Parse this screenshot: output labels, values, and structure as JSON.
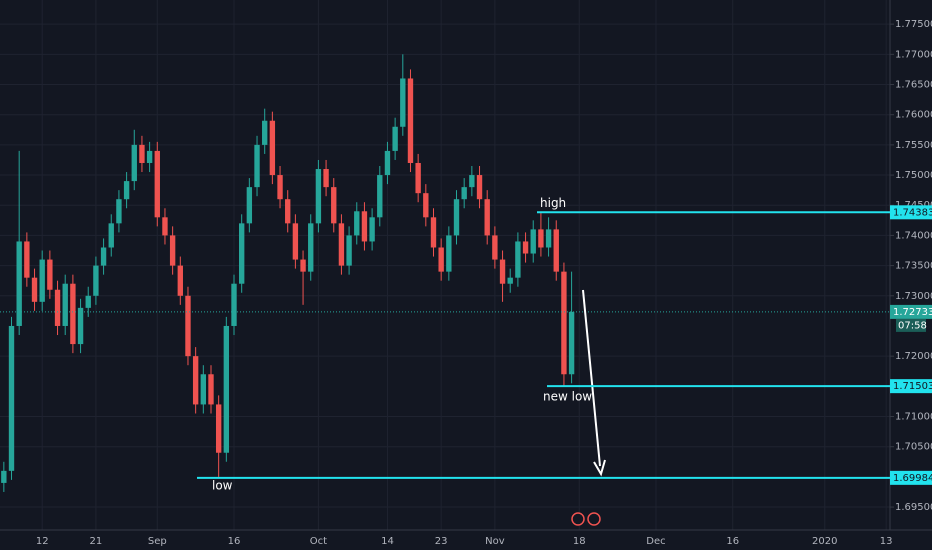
{
  "chart_data": {
    "type": "candlestick",
    "categories": [
      null,
      null,
      null,
      null,
      null,
      "12",
      null,
      null,
      null,
      null,
      null,
      null,
      "21",
      null,
      null,
      null,
      null,
      null,
      null,
      null,
      "Sep",
      null,
      null,
      null,
      null,
      null,
      null,
      null,
      null,
      null,
      "16",
      null,
      null,
      null,
      null,
      null,
      null,
      null,
      null,
      null,
      null,
      "Oct",
      null,
      null,
      null,
      null,
      null,
      null,
      null,
      null,
      "14",
      null,
      null,
      null,
      null,
      null,
      null,
      "23",
      null,
      null,
      null,
      null,
      null,
      null,
      "Nov",
      null,
      null,
      null,
      null,
      null,
      null,
      null,
      null,
      null,
      null,
      "18",
      null,
      null,
      null,
      null,
      null,
      null,
      null,
      null,
      null,
      "Dec",
      null,
      null,
      null,
      null,
      null,
      null,
      null,
      null,
      null,
      "16",
      null,
      null,
      null,
      null,
      null,
      null,
      null,
      null,
      null,
      null,
      null,
      "2020",
      null,
      null,
      null,
      null,
      null,
      null,
      null,
      "13"
    ],
    "open": [
      1.699,
      1.701,
      1.725,
      1.739,
      1.733,
      1.729,
      1.736,
      1.731,
      1.725,
      1.732,
      1.722,
      1.728,
      1.73,
      1.735,
      1.738,
      1.742,
      1.746,
      1.749,
      1.755,
      1.752,
      1.754,
      1.743,
      1.74,
      1.735,
      1.73,
      1.72,
      1.712,
      1.717,
      1.712,
      1.704,
      1.725,
      1.732,
      1.742,
      1.748,
      1.755,
      1.759,
      1.75,
      1.746,
      1.742,
      1.736,
      1.734,
      1.742,
      1.751,
      1.748,
      1.742,
      1.735,
      1.74,
      1.744,
      1.739,
      1.743,
      1.75,
      1.754,
      1.758,
      1.766,
      1.752,
      1.747,
      1.743,
      1.738,
      1.734,
      1.74,
      1.746,
      1.748,
      1.75,
      1.746,
      1.74,
      1.736,
      1.732,
      1.733,
      1.739,
      1.737,
      1.741,
      1.738,
      1.741,
      1.734,
      1.717,
      null,
      null,
      null,
      null,
      null,
      null,
      null,
      null,
      null,
      null,
      null,
      null,
      null,
      null,
      null,
      null,
      null,
      null,
      null,
      null,
      null,
      null,
      null,
      null,
      null,
      null,
      null,
      null,
      null,
      null,
      null,
      null,
      null,
      null,
      null,
      null,
      null,
      null,
      null,
      null,
      null
    ],
    "high": [
      1.7025,
      1.7265,
      1.754,
      1.7405,
      1.7345,
      1.7375,
      1.7375,
      1.7325,
      1.7335,
      1.7335,
      1.7295,
      1.7315,
      1.7365,
      1.7395,
      1.7435,
      1.7475,
      1.7505,
      1.7575,
      1.7565,
      1.7555,
      1.7555,
      1.7445,
      1.7415,
      1.7365,
      1.7315,
      1.7215,
      1.7185,
      1.7185,
      1.7135,
      1.7265,
      1.7335,
      1.7435,
      1.7495,
      1.7565,
      1.761,
      1.7605,
      1.7515,
      1.7475,
      1.7435,
      1.7375,
      1.7435,
      1.7525,
      1.7525,
      1.7495,
      1.7435,
      1.7415,
      1.7455,
      1.7455,
      1.7445,
      1.7515,
      1.7555,
      1.7595,
      1.77,
      1.7675,
      1.7535,
      1.7485,
      1.7445,
      1.7395,
      1.7415,
      1.7475,
      1.7495,
      1.7515,
      1.7515,
      1.7475,
      1.7415,
      1.7375,
      1.7345,
      1.7405,
      1.7405,
      1.7425,
      1.7438,
      1.743,
      1.7425,
      1.7355,
      1.734,
      null,
      null,
      null,
      null,
      null,
      null,
      null,
      null,
      null,
      null,
      null,
      null,
      null,
      null,
      null,
      null,
      null,
      null,
      null,
      null,
      null,
      null,
      null,
      null,
      null,
      null,
      null,
      null,
      null,
      null,
      null,
      null,
      null,
      null,
      null,
      null,
      null,
      null,
      null,
      null,
      null
    ],
    "low": [
      1.6975,
      1.6995,
      1.7235,
      1.7315,
      1.7275,
      1.7275,
      1.7295,
      1.7235,
      1.7235,
      1.7205,
      1.7205,
      1.7265,
      1.7285,
      1.7335,
      1.7365,
      1.7405,
      1.7445,
      1.7475,
      1.7505,
      1.7505,
      1.7415,
      1.7385,
      1.7335,
      1.7285,
      1.7185,
      1.7105,
      1.7105,
      1.7105,
      1.7,
      1.7025,
      1.7235,
      1.7305,
      1.7405,
      1.7465,
      1.7535,
      1.7485,
      1.7445,
      1.7405,
      1.7345,
      1.7285,
      1.7325,
      1.7405,
      1.7465,
      1.7405,
      1.7335,
      1.7335,
      1.7385,
      1.7375,
      1.7375,
      1.7415,
      1.7485,
      1.7525,
      1.7565,
      1.7505,
      1.7455,
      1.7415,
      1.7365,
      1.7325,
      1.7325,
      1.7385,
      1.7445,
      1.7465,
      1.7445,
      1.7385,
      1.7345,
      1.729,
      1.7305,
      1.7315,
      1.7355,
      1.7355,
      1.7365,
      1.7365,
      1.7325,
      1.715,
      1.7155,
      null,
      null,
      null,
      null,
      null,
      null,
      null,
      null,
      null,
      null,
      null,
      null,
      null,
      null,
      null,
      null,
      null,
      null,
      null,
      null,
      null,
      null,
      null,
      null,
      null,
      null,
      null,
      null,
      null,
      null,
      null,
      null,
      null,
      null,
      null,
      null,
      null,
      null,
      null,
      null,
      null
    ],
    "close": [
      1.701,
      1.725,
      1.739,
      1.733,
      1.729,
      1.736,
      1.731,
      1.725,
      1.732,
      1.722,
      1.728,
      1.73,
      1.735,
      1.738,
      1.742,
      1.746,
      1.749,
      1.755,
      1.752,
      1.754,
      1.743,
      1.74,
      1.735,
      1.73,
      1.72,
      1.712,
      1.717,
      1.712,
      1.704,
      1.725,
      1.732,
      1.742,
      1.748,
      1.755,
      1.759,
      1.75,
      1.746,
      1.742,
      1.736,
      1.734,
      1.742,
      1.751,
      1.748,
      1.742,
      1.735,
      1.74,
      1.744,
      1.739,
      1.743,
      1.75,
      1.754,
      1.758,
      1.766,
      1.752,
      1.747,
      1.743,
      1.738,
      1.734,
      1.74,
      1.746,
      1.748,
      1.75,
      1.746,
      1.74,
      1.736,
      1.732,
      1.733,
      1.739,
      1.737,
      1.741,
      1.738,
      1.741,
      1.734,
      1.717,
      1.72733,
      null,
      null,
      null,
      null,
      null,
      null,
      null,
      null,
      null,
      null,
      null,
      null,
      null,
      null,
      null,
      null,
      null,
      null,
      null,
      null,
      null,
      null,
      null,
      null,
      null,
      null,
      null,
      null,
      null,
      null,
      null,
      null,
      null,
      null,
      null,
      null,
      null,
      null,
      null,
      null,
      null
    ],
    "up_color": "#26a69a",
    "down_color": "#ef5350",
    "ylim": [
      1.6912,
      1.779
    ],
    "yticks": [
      {
        "value": 1.695,
        "label": "1.69500"
      },
      {
        "value": 1.705,
        "label": "1.70500"
      },
      {
        "value": 1.71,
        "label": "1.71000"
      },
      {
        "value": 1.72,
        "label": "1.72000"
      },
      {
        "value": 1.73,
        "label": "1.73000"
      },
      {
        "value": 1.735,
        "label": "1.73500"
      },
      {
        "value": 1.74,
        "label": "1.74000"
      },
      {
        "value": 1.745,
        "label": "1.74500"
      },
      {
        "value": 1.75,
        "label": "1.75000"
      },
      {
        "value": 1.755,
        "label": "1.75500"
      },
      {
        "value": 1.76,
        "label": "1.76000"
      },
      {
        "value": 1.765,
        "label": "1.76500"
      },
      {
        "value": 1.77,
        "label": "1.77000"
      },
      {
        "value": 1.775,
        "label": "1.77500"
      }
    ],
    "grid": true,
    "levels": [
      {
        "value": 1.74383,
        "text": "high"
      },
      {
        "value": 1.71503,
        "text": "new low"
      },
      {
        "value": 1.69984,
        "text": "low"
      }
    ],
    "level_color": "#22e3ee",
    "countdown": "07:58"
  }
}
